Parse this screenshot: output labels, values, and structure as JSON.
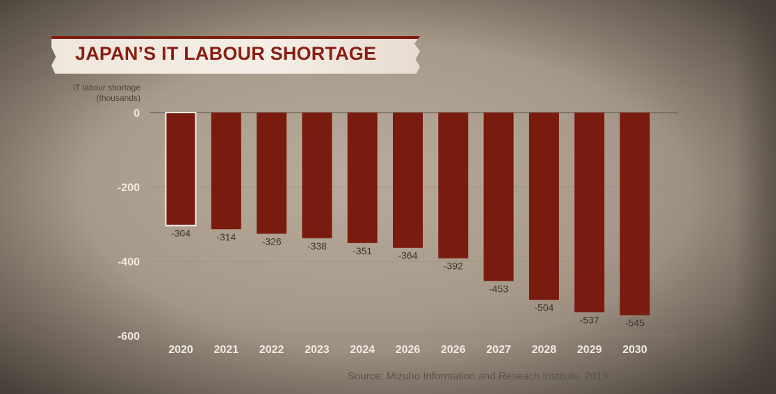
{
  "title": "JAPAN’S IT LABOUR SHORTAGE",
  "source": "Source: Mizuho Information and Reseach Institute, 2019",
  "colors": {
    "bar": "#7a1b0f",
    "highlight_outline": "#f2ece4",
    "title": "#8a1d12"
  },
  "chart_data": {
    "type": "bar",
    "ylabel": "IT labour shortage\n(thousands)",
    "xlabel": "",
    "categories": [
      "2020",
      "2021",
      "2022",
      "2023",
      "2024",
      "2026",
      "2026",
      "2027",
      "2028",
      "2029",
      "2030"
    ],
    "values": [
      -304,
      -314,
      -326,
      -338,
      -351,
      -364,
      -392,
      -453,
      -504,
      -537,
      -545
    ],
    "value_labels": [
      "-304",
      "-314",
      "-326",
      "-338",
      "-351",
      "-364",
      "-392",
      "-453",
      "-504",
      "-537",
      "-545"
    ],
    "ylim": [
      -600,
      0
    ],
    "yticks": [
      0,
      -200,
      -400,
      -600
    ],
    "ytick_labels": [
      "0",
      "-200",
      "-400",
      "-600"
    ],
    "highlighted_index": 0,
    "grid": true,
    "legend": "none"
  }
}
